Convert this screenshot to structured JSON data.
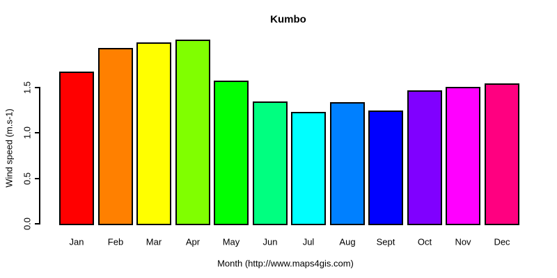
{
  "chart_data": {
    "type": "bar",
    "title": "Kumbo",
    "ylabel": "Wind speed (m.s-1)",
    "xlabel": "Month (http://www.maps4gis.com)",
    "categories": [
      "Jan",
      "Feb",
      "Mar",
      "Apr",
      "May",
      "Jun",
      "Jul",
      "Aug",
      "Sept",
      "Oct",
      "Nov",
      "Dec"
    ],
    "values": [
      1.66,
      1.92,
      1.98,
      2.01,
      1.56,
      1.33,
      1.22,
      1.32,
      1.23,
      1.45,
      1.49,
      1.53
    ],
    "bar_colors": [
      "#FF0000",
      "#FF8000",
      "#FFFF00",
      "#80FF00",
      "#00FF00",
      "#00FF80",
      "#00FFFF",
      "#0080FF",
      "#0000FF",
      "#8000FF",
      "#FF00FF",
      "#FF0080"
    ],
    "bar_border_color": "#000000",
    "yticks": [
      "0.0",
      "0.5",
      "1.0",
      "1.5"
    ],
    "ylim": [
      0,
      2.05
    ],
    "grid": "off",
    "legend": "none",
    "background": "#FFFFFF",
    "axis_color": "#000000"
  }
}
